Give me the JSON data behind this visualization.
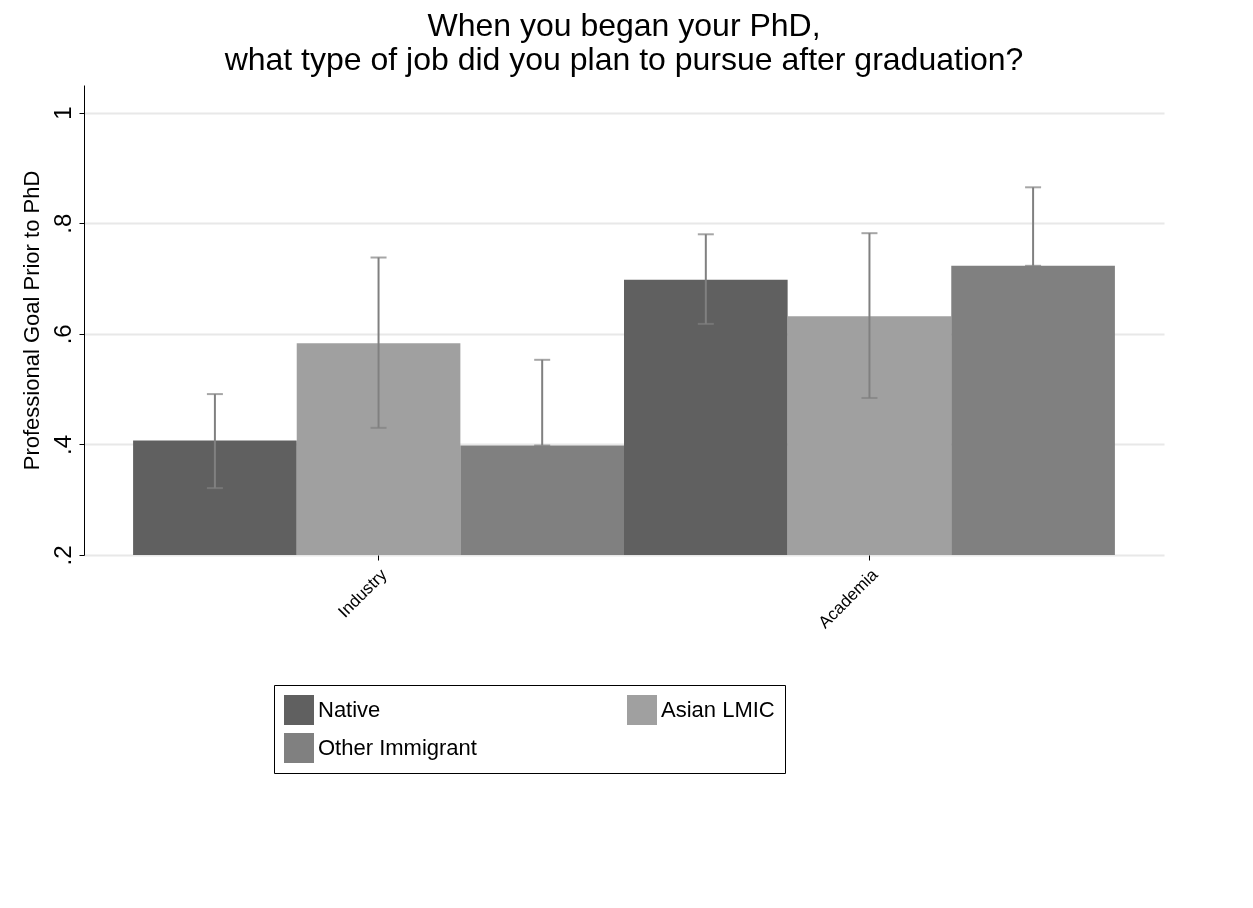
{
  "chart_data": {
    "type": "bar",
    "title": "When you began your PhD,\nwhat type of job did you plan to pursue after graduation?",
    "ylabel": "Professional Goal Prior to PhD",
    "categories": [
      "Industry",
      "Academia"
    ],
    "series": [
      {
        "name": "Native",
        "color": "#606060",
        "values": [
          0.407,
          0.698
        ],
        "errors": [
          [
            0.321,
            0.491
          ],
          [
            0.618,
            0.78
          ]
        ]
      },
      {
        "name": "Asian LMIC",
        "color": "#a0a0a0",
        "values": [
          0.583,
          0.632
        ],
        "errors": [
          [
            0.43,
            0.738
          ],
          [
            0.484,
            0.782
          ]
        ]
      },
      {
        "name": "Other Immigrant",
        "color": "#808080",
        "values": [
          0.398,
          0.723
        ],
        "errors": [
          [
            0.398,
            0.553
          ],
          [
            0.723,
            0.865
          ]
        ]
      }
    ],
    "ylim": [
      0.2,
      1.05
    ],
    "yticks": [
      {
        "value": 0.2,
        "label": ".2"
      },
      {
        "value": 0.4,
        "label": ".4"
      },
      {
        "value": 0.6,
        "label": ".6"
      },
      {
        "value": 0.8,
        "label": ".8"
      },
      {
        "value": 1,
        "label": "1"
      }
    ],
    "grid": "y",
    "legend": "bottom"
  }
}
